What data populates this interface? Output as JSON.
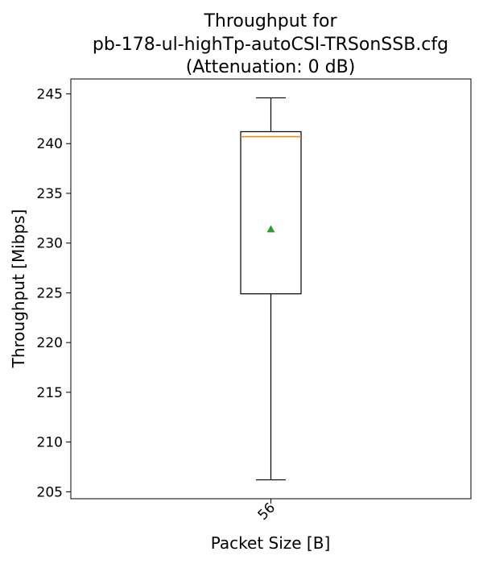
{
  "chart_data": {
    "type": "boxplot",
    "title": [
      "Throughput for",
      "pb-178-ul-highTp-autoCSI-TRSonSSB.cfg",
      "(Attenuation: 0 dB)"
    ],
    "xlabel": "Packet Size [B]",
    "ylabel": "Throughput [Mibps]",
    "categories": [
      "56"
    ],
    "boxes": [
      {
        "category": "56",
        "whisker_low": 206.2,
        "q1": 224.9,
        "median": 240.7,
        "q3": 241.2,
        "whisker_high": 244.6,
        "mean": 231.4
      }
    ],
    "ylim": [
      204.3,
      246.5
    ],
    "yticks": [
      205,
      210,
      215,
      220,
      225,
      230,
      235,
      240,
      245
    ],
    "grid": false,
    "colors": {
      "box": "#000000",
      "median": "#ff7f0e",
      "mean": "#2ca02c"
    }
  }
}
